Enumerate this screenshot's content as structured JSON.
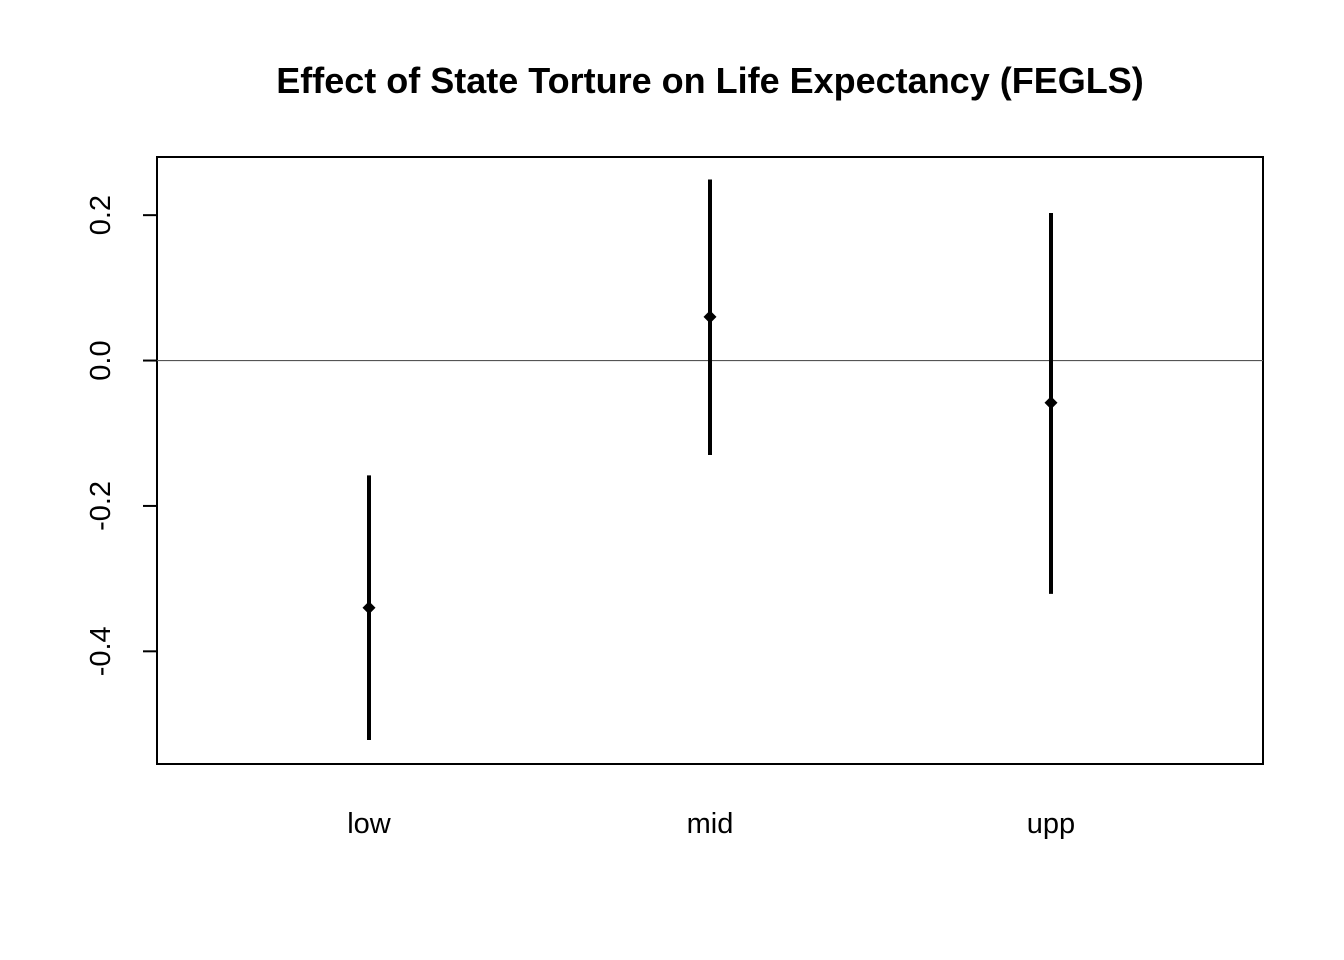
{
  "chart_data": {
    "type": "errorbar",
    "title": "Effect of State Torture on Life Expectancy (FEGLS)",
    "xlabel": "",
    "ylabel": "",
    "categories": [
      "low",
      "mid",
      "upp"
    ],
    "estimates": [
      -0.34,
      0.06,
      -0.058
    ],
    "lower": [
      -0.522,
      -0.13,
      -0.321
    ],
    "upper": [
      -0.158,
      0.249,
      0.203
    ],
    "ylim": [
      -0.555,
      0.28
    ],
    "yticks": [
      -0.4,
      -0.2,
      0.0,
      0.2
    ],
    "ytick_labels": [
      "-0.4",
      "-0.2",
      "0.0",
      "0.2"
    ],
    "reference_line": 0,
    "grid": false,
    "colors": {
      "marks": "#000000",
      "reference": "#555555"
    }
  }
}
